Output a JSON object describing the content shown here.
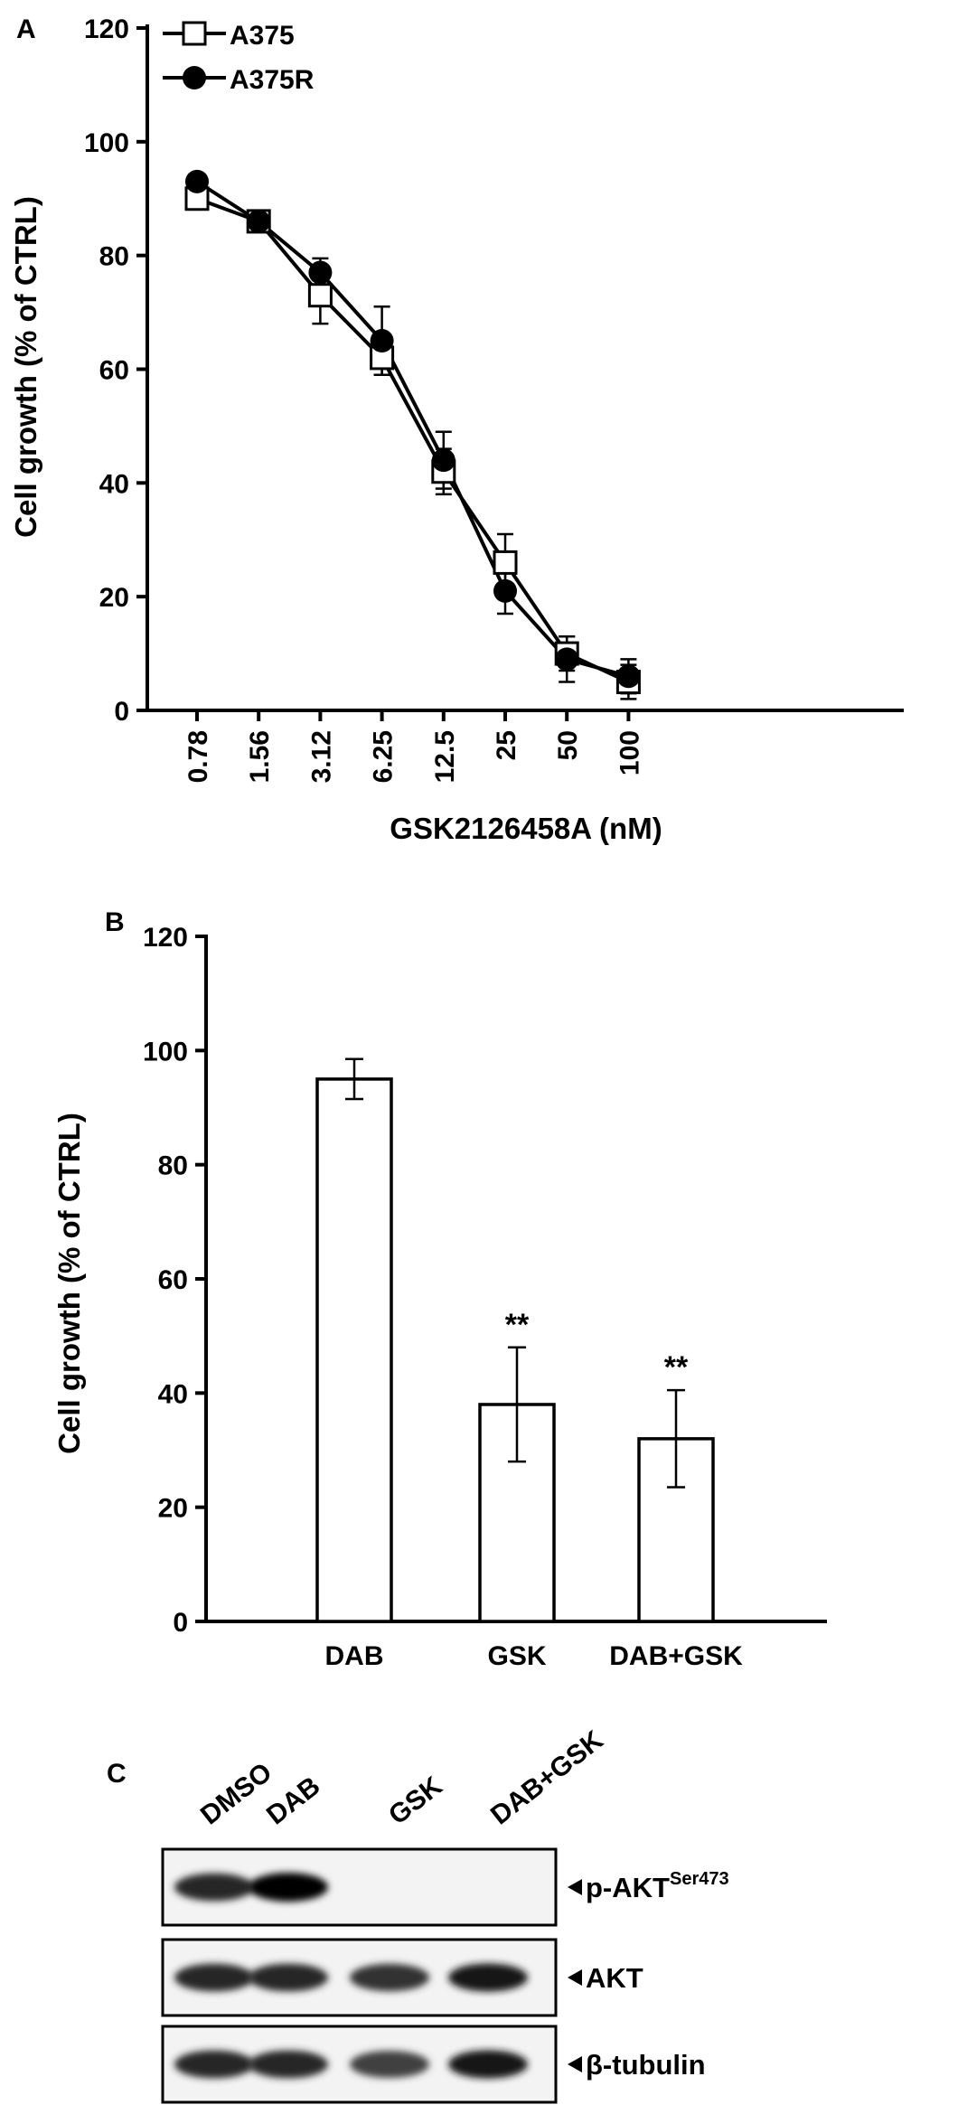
{
  "chart_data": [
    {
      "panel": "A",
      "type": "line",
      "xlabel": "GSK2126458A (nM)",
      "ylabel": "Cell growth (% of CTRL)",
      "ylim": [
        0,
        120
      ],
      "yticks": [
        "0",
        "20",
        "40",
        "60",
        "80",
        "100",
        "120"
      ],
      "categories": [
        "0.78",
        "1.56",
        "3.12",
        "6.25",
        "12.5",
        "25",
        "50",
        "100"
      ],
      "legend_position": "top-left",
      "series": [
        {
          "name": "A375",
          "marker": "open-square",
          "values": [
            90,
            86,
            73,
            62,
            42,
            26,
            10,
            5
          ],
          "errors": [
            1,
            1,
            5,
            3,
            4,
            5,
            3,
            3
          ]
        },
        {
          "name": "A375R",
          "marker": "filled-circle",
          "values": [
            93,
            86,
            77,
            65,
            44,
            21,
            9,
            6
          ],
          "errors": [
            1,
            1,
            2.5,
            6,
            5,
            4,
            4,
            3
          ]
        }
      ]
    },
    {
      "panel": "B",
      "type": "bar",
      "ylabel": "Cell growth (% of CTRL)",
      "ylim": [
        0,
        120
      ],
      "yticks": [
        "0",
        "20",
        "40",
        "60",
        "80",
        "100",
        "120"
      ],
      "categories": [
        "DAB",
        "GSK",
        "DAB+GSK"
      ],
      "values": [
        95,
        38,
        32
      ],
      "errors": [
        3.5,
        10,
        8.5
      ],
      "annotations": [
        "",
        "**",
        "**"
      ]
    }
  ],
  "blot": {
    "panel": "C",
    "lanes": [
      "DMSO",
      "DAB",
      "GSK",
      "DAB+GSK"
    ],
    "rows": [
      {
        "label": "p-AKT",
        "superscript": "Ser473",
        "intensity": [
          0.85,
          1.0,
          0,
          0
        ]
      },
      {
        "label": "AKT",
        "superscript": "",
        "intensity": [
          0.85,
          0.85,
          0.8,
          0.9
        ]
      },
      {
        "label": "β-tubulin",
        "superscript": "",
        "intensity": [
          0.85,
          0.85,
          0.75,
          0.9
        ]
      }
    ]
  }
}
